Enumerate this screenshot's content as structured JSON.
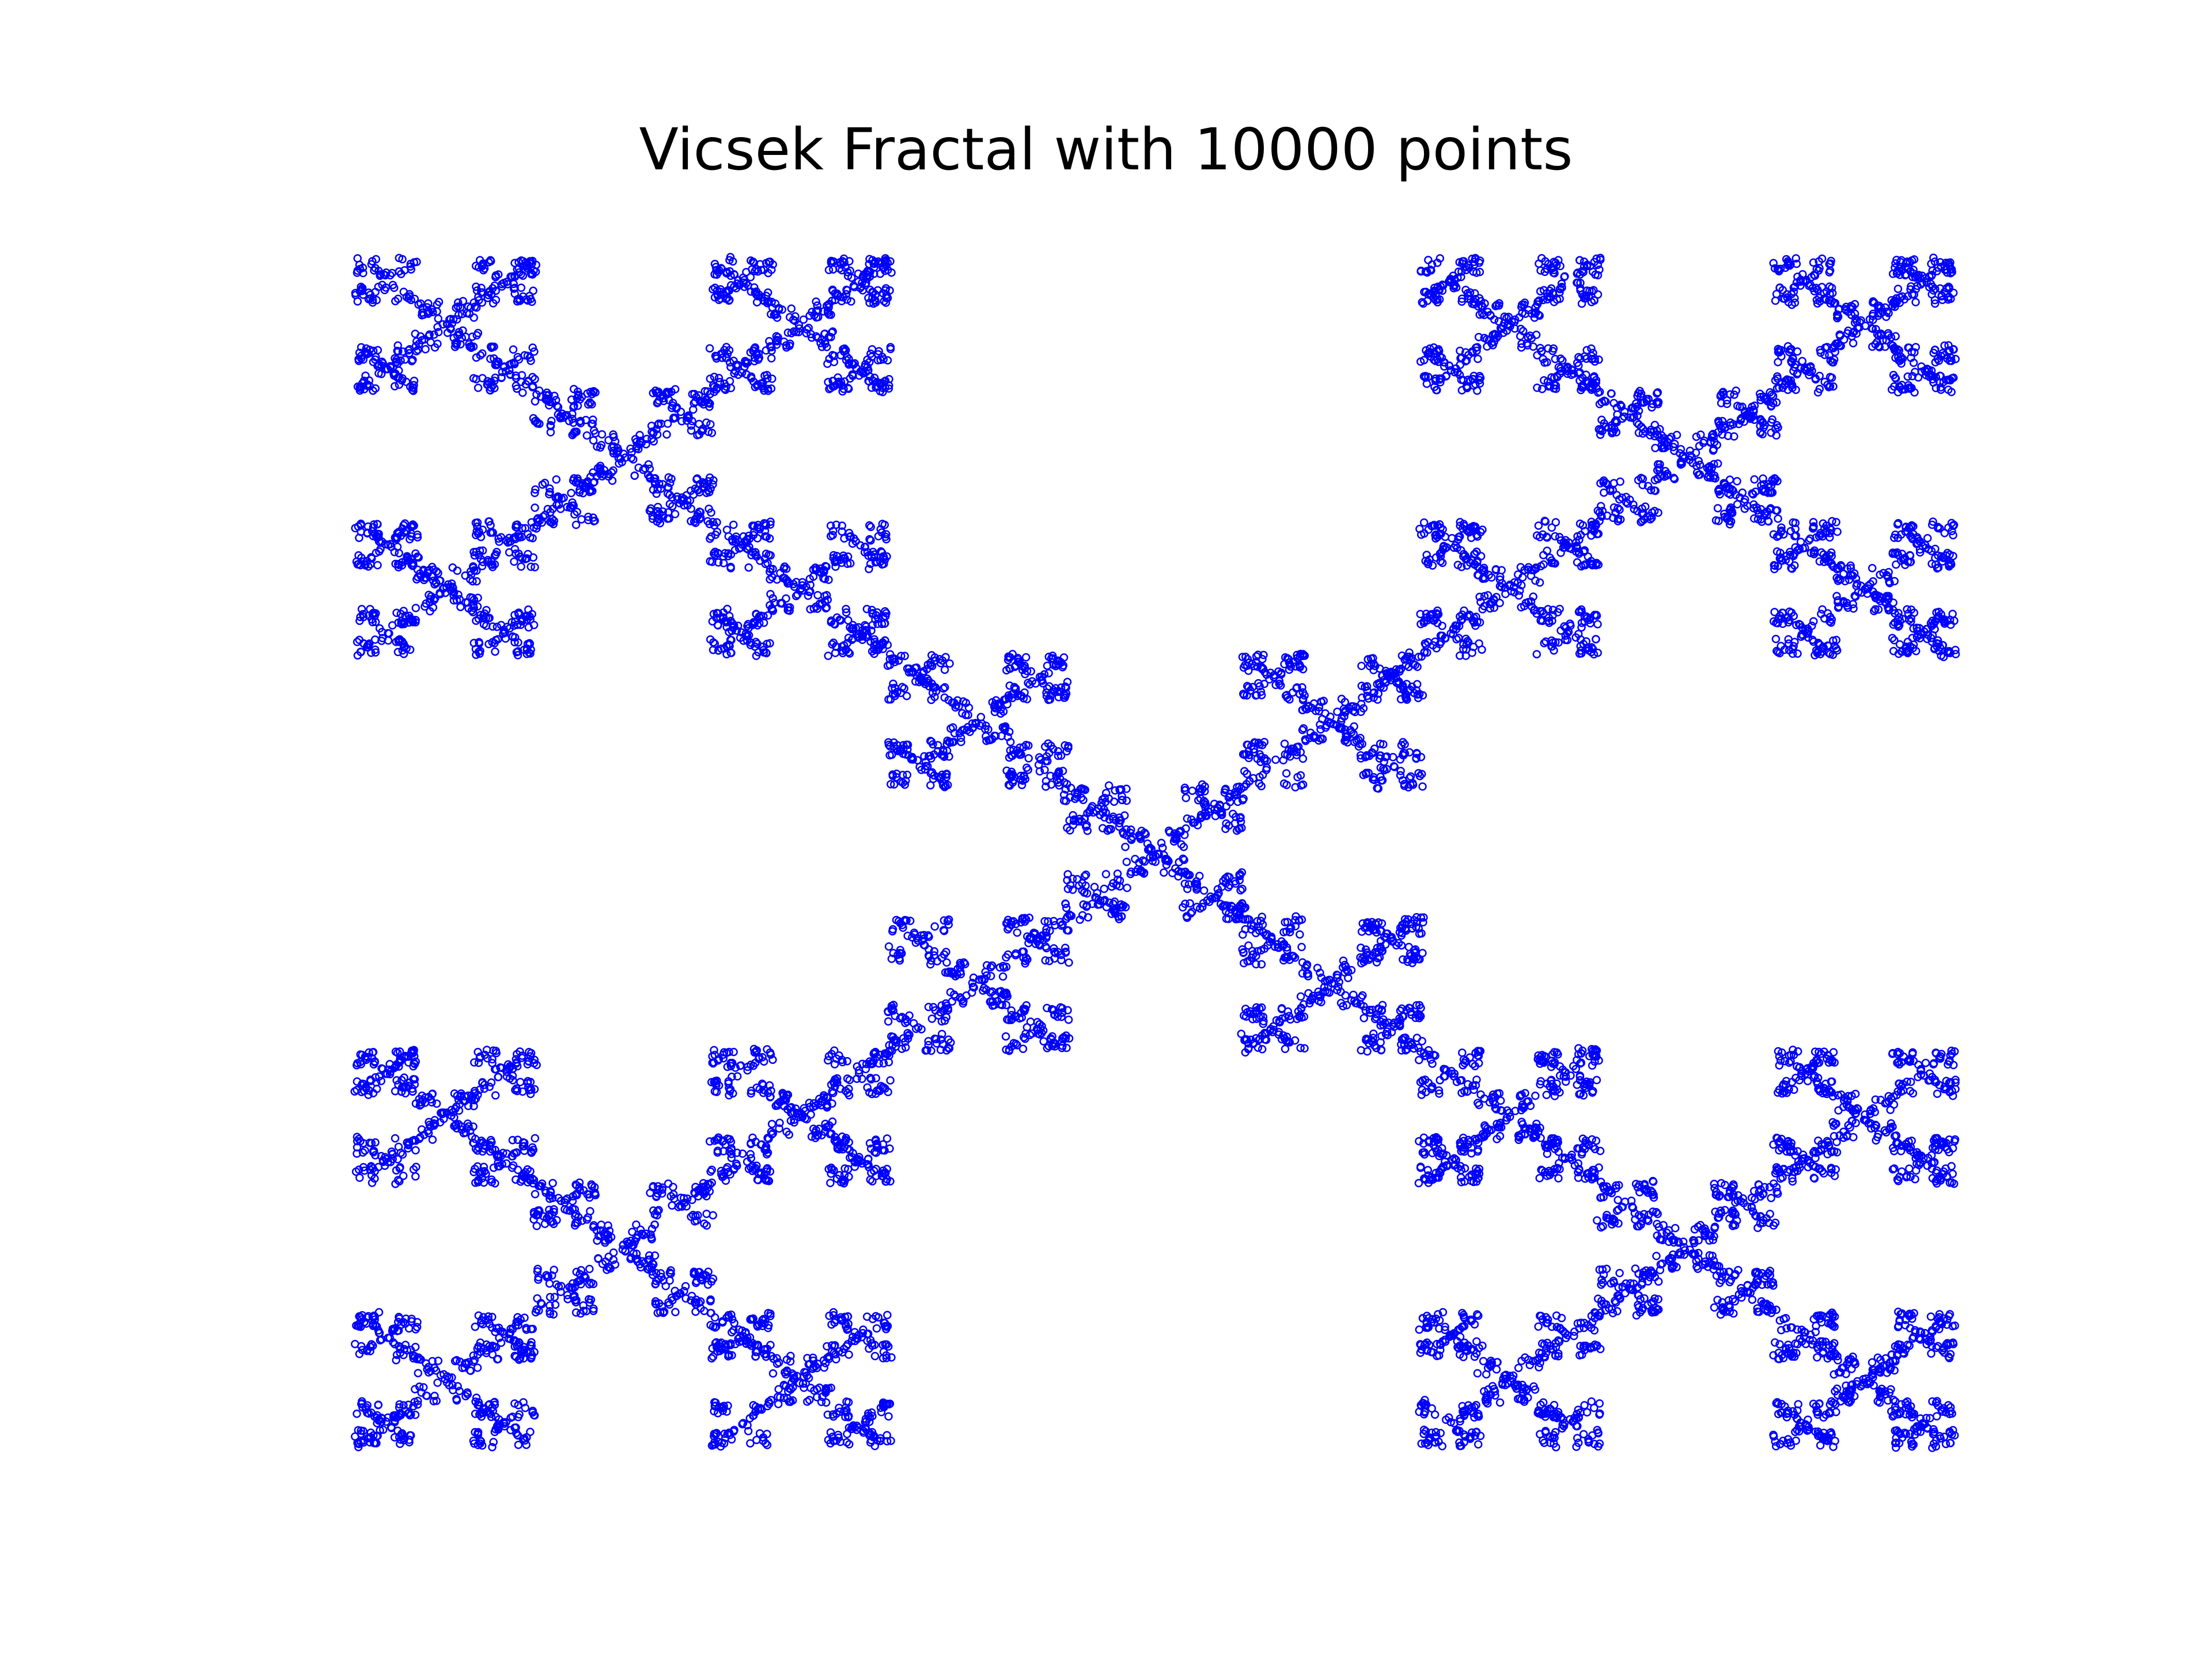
{
  "chart_data": {
    "type": "scatter",
    "title": "Vicsek Fractal with 10000 points",
    "xlabel": "",
    "ylabel": "",
    "axes_visible": false,
    "grid": false,
    "legend": "none",
    "marker": "hollow-circle",
    "marker_color": "#0000ff",
    "n_points": 10000,
    "fractal": "vicsek-x",
    "iterations_rendered": 4,
    "xlim": [
      0,
      1
    ],
    "ylim": [
      0,
      1
    ],
    "series": [
      {
        "color": "#0000ff",
        "values": "generated: 10000 points of the X-shaped Vicsek fractal"
      }
    ]
  }
}
